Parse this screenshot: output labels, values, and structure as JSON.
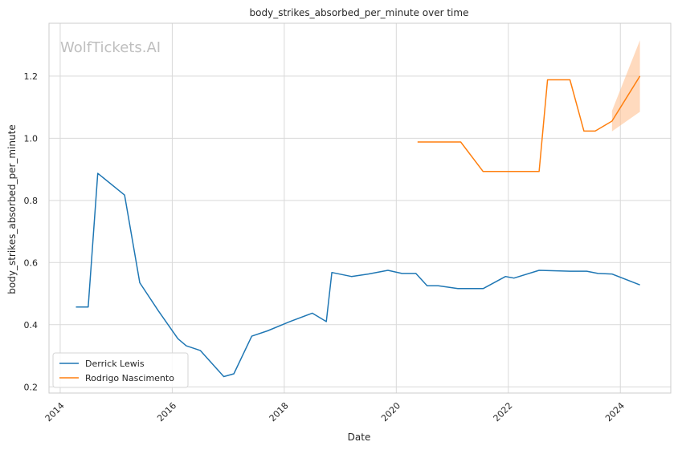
{
  "chart_data": {
    "type": "line",
    "title": "body_strikes_absorbed_per_minute over time",
    "xlabel": "Date",
    "ylabel": "body_strikes_absorbed_per_minute",
    "watermark": "WolfTickets.AI",
    "xlim": [
      2013.8,
      2024.9
    ],
    "ylim": [
      0.18,
      1.37
    ],
    "x_ticks": [
      2014,
      2016,
      2018,
      2020,
      2022,
      2024
    ],
    "x_tick_labels": [
      "2014",
      "2016",
      "2018",
      "2020",
      "2022",
      "2024"
    ],
    "y_ticks": [
      0.2,
      0.4,
      0.6,
      0.8,
      1.0,
      1.2
    ],
    "y_tick_labels": [
      "0.2",
      "0.4",
      "0.6",
      "0.8",
      "1.0",
      "1.2"
    ],
    "grid": true,
    "legend_position": "bottom-left",
    "series": [
      {
        "name": "Derrick Lewis",
        "color": "#1f77b4",
        "points": [
          [
            2014.28,
            0.457
          ],
          [
            2014.5,
            0.457
          ],
          [
            2014.67,
            0.887
          ],
          [
            2015.15,
            0.817
          ],
          [
            2015.42,
            0.535
          ],
          [
            2015.75,
            0.445
          ],
          [
            2016.1,
            0.355
          ],
          [
            2016.25,
            0.332
          ],
          [
            2016.5,
            0.317
          ],
          [
            2016.92,
            0.233
          ],
          [
            2017.1,
            0.242
          ],
          [
            2017.42,
            0.363
          ],
          [
            2017.7,
            0.38
          ],
          [
            2018.1,
            0.41
          ],
          [
            2018.5,
            0.437
          ],
          [
            2018.75,
            0.41
          ],
          [
            2018.85,
            0.568
          ],
          [
            2019.2,
            0.555
          ],
          [
            2019.5,
            0.563
          ],
          [
            2019.85,
            0.575
          ],
          [
            2020.1,
            0.565
          ],
          [
            2020.35,
            0.565
          ],
          [
            2020.55,
            0.525
          ],
          [
            2020.75,
            0.525
          ],
          [
            2021.1,
            0.516
          ],
          [
            2021.55,
            0.516
          ],
          [
            2021.95,
            0.555
          ],
          [
            2022.1,
            0.55
          ],
          [
            2022.55,
            0.575
          ],
          [
            2023.1,
            0.572
          ],
          [
            2023.4,
            0.572
          ],
          [
            2023.6,
            0.565
          ],
          [
            2023.85,
            0.563
          ],
          [
            2024.35,
            0.528
          ]
        ]
      },
      {
        "name": "Rodrigo Nascimento",
        "color": "#ff7f0e",
        "points": [
          [
            2020.38,
            0.988
          ],
          [
            2021.15,
            0.988
          ],
          [
            2021.55,
            0.893
          ],
          [
            2022.55,
            0.893
          ],
          [
            2022.7,
            1.188
          ],
          [
            2023.1,
            1.188
          ],
          [
            2023.35,
            1.023
          ],
          [
            2023.55,
            1.023
          ],
          [
            2023.85,
            1.055
          ],
          [
            2024.35,
            1.2
          ]
        ],
        "band": {
          "color": "#ffbb88",
          "x": [
            2023.85,
            2024.35
          ],
          "lower": [
            1.022,
            1.085
          ],
          "upper": [
            1.088,
            1.315
          ]
        }
      }
    ]
  }
}
